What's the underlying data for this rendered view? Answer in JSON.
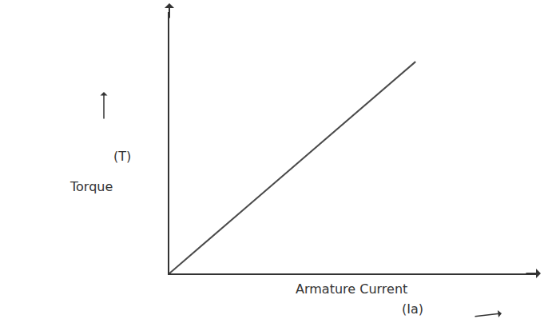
{
  "chart_data": {
    "type": "line",
    "ylabel": "Torque",
    "ylabel_symbol": "(T)",
    "xlabel": "Armature Current",
    "xlabel_symbol": "(Ia)",
    "x": [
      0,
      6.7
    ],
    "values": [
      0,
      8.1
    ],
    "xlim": [
      0,
      10
    ],
    "ylim": [
      0,
      10
    ],
    "color": "#4a4a4a",
    "grid": false,
    "tick_labels": false
  }
}
